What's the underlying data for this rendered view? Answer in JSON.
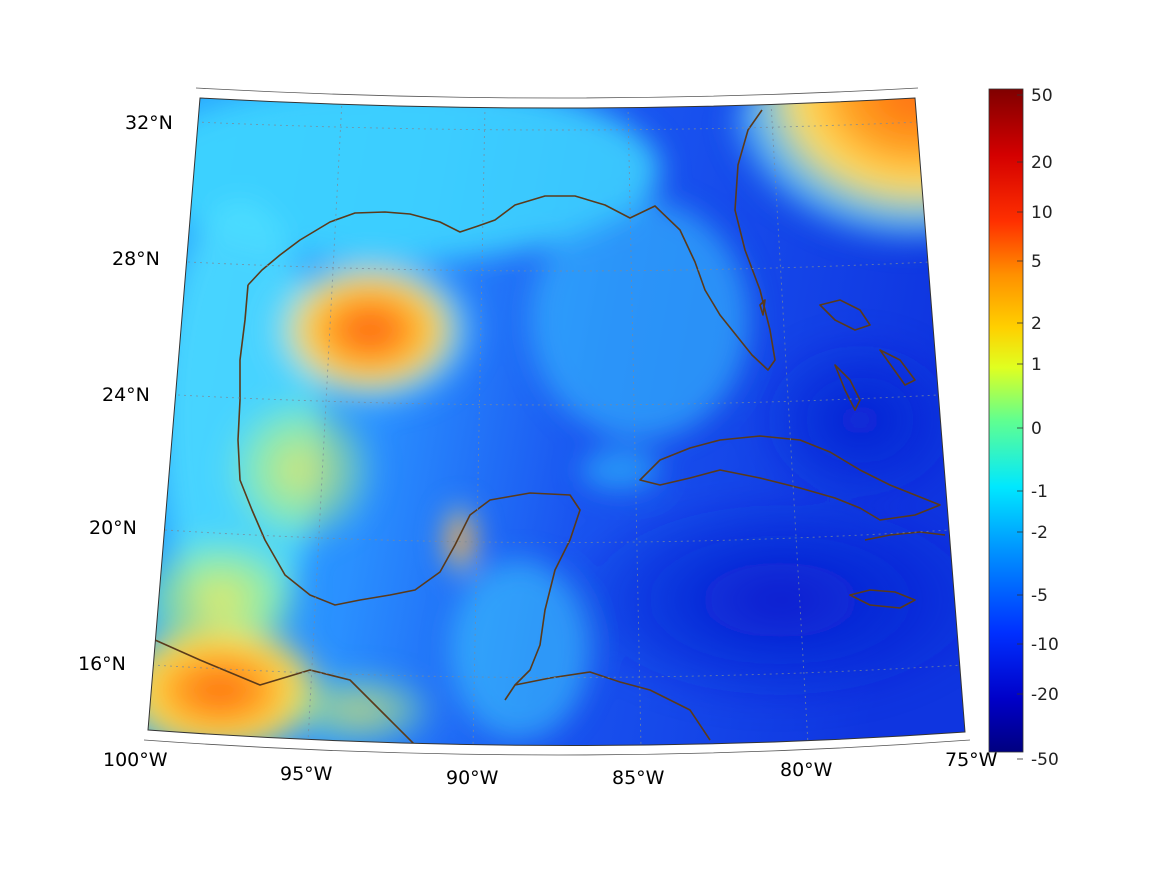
{
  "map": {
    "longitude_labels": [
      "100°W",
      "95°W",
      "90°W",
      "85°W",
      "80°W",
      "75°W"
    ],
    "latitude_labels": [
      "32°N",
      "28°N",
      "24°N",
      "20°N",
      "16°N"
    ],
    "colors": {
      "land_outline": "#5a3a1a",
      "gridline": "#7a8a9a"
    }
  },
  "colorbar": {
    "labels": [
      "50",
      "20",
      "10",
      "5",
      "2",
      "1",
      "0",
      "-1",
      "-2",
      "-5",
      "-10",
      "-20",
      "-50"
    ],
    "colors": [
      "#800000",
      "#ff0000",
      "#ff8000",
      "#ffff00",
      "#80ff80",
      "#00ffff",
      "#0080ff",
      "#0000ff",
      "#000080"
    ]
  }
}
